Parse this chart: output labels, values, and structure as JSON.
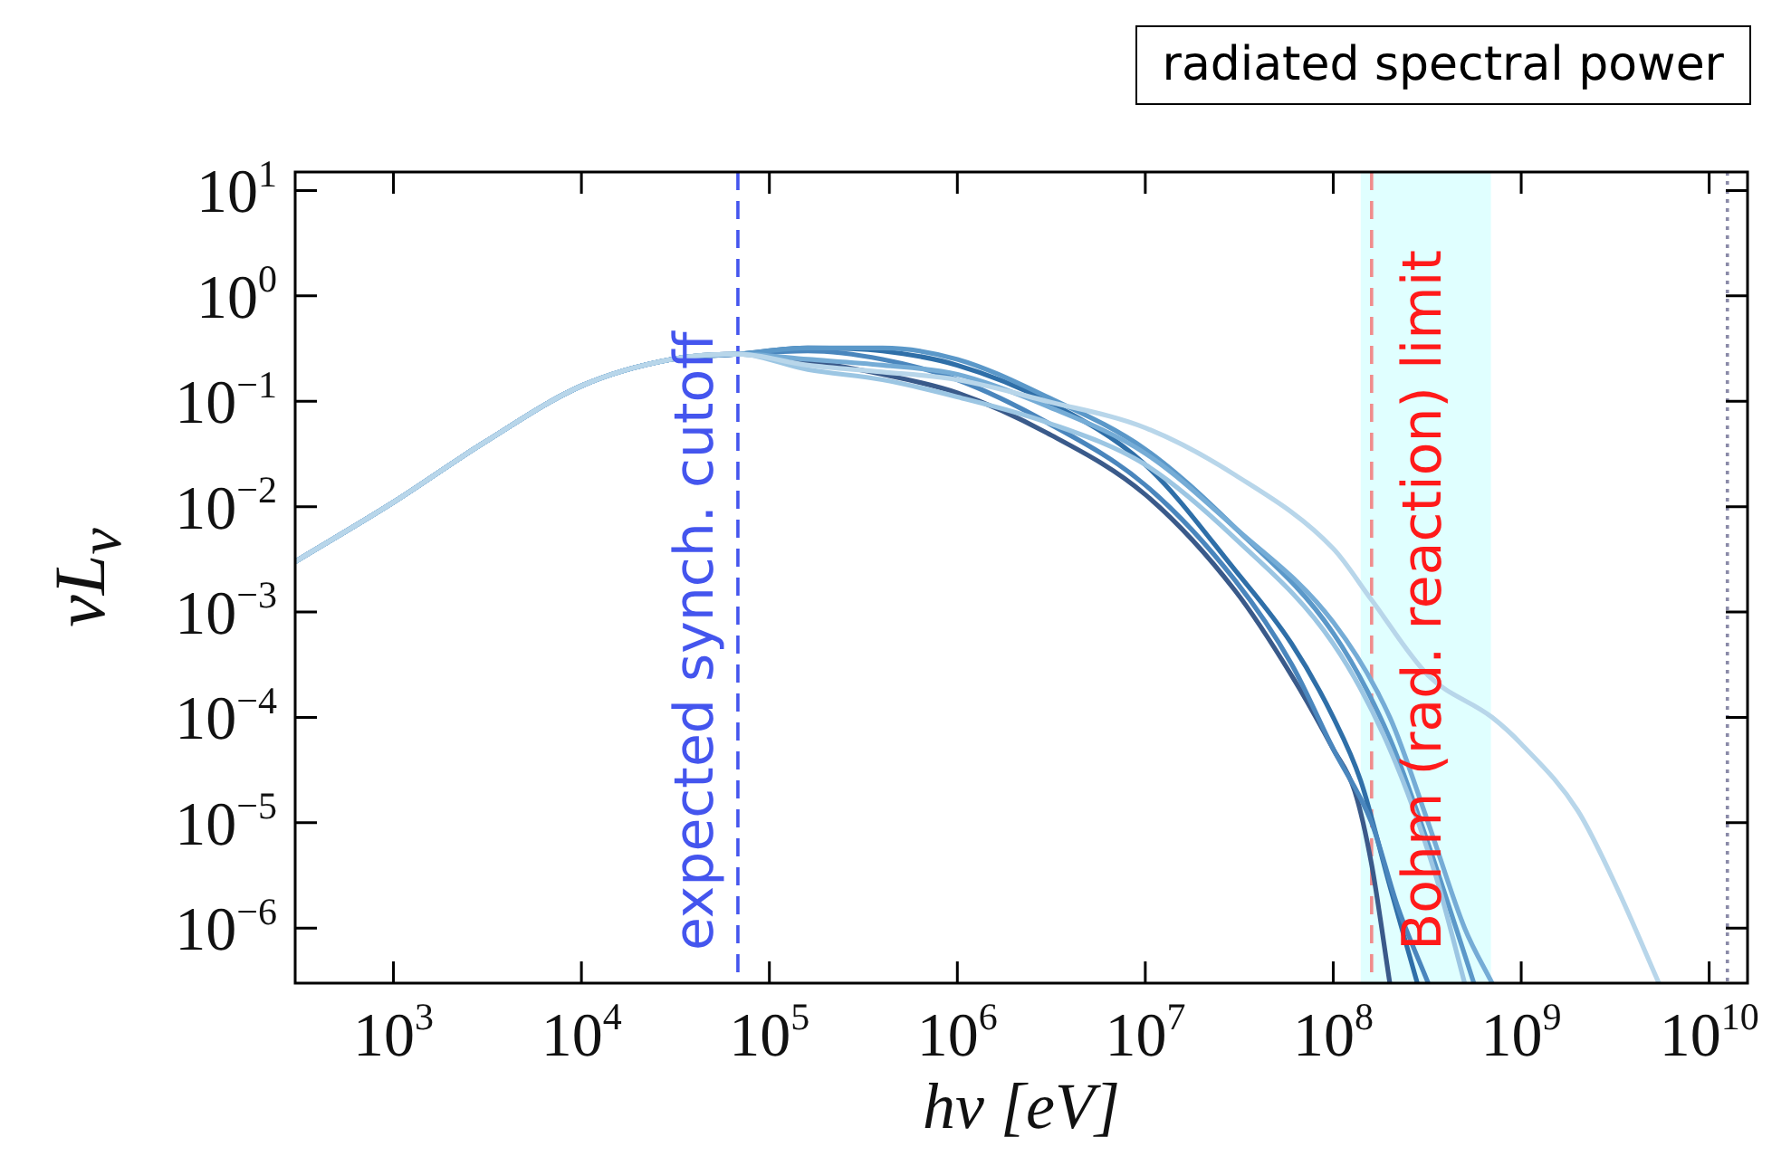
{
  "chart_data": {
    "type": "line",
    "title": "radiated spectral power",
    "xlabel": "hν [eV]",
    "ylabel": "νL$_{ν}$",
    "log": "xy",
    "grid": false,
    "legend": false,
    "marker": "none",
    "line_style": "solid",
    "xlim": [
      300,
      16000000000
    ],
    "ylim": [
      3e-07,
      15
    ],
    "xticks": [
      {
        "value": 1000,
        "label": "10$^{3}$"
      },
      {
        "value": 10000,
        "label": "10$^{4}$"
      },
      {
        "value": 100000,
        "label": "10$^{5}$"
      },
      {
        "value": 1000000,
        "label": "10$^{6}$"
      },
      {
        "value": 10000000,
        "label": "10$^{7}$"
      },
      {
        "value": 100000000,
        "label": "10$^{8}$"
      },
      {
        "value": 1000000000,
        "label": "10$^{9}$"
      },
      {
        "value": 10000000000,
        "label": "10$^{10}$"
      }
    ],
    "yticks": [
      {
        "value": 1e-06,
        "label": "10$^{−6}$"
      },
      {
        "value": 1e-05,
        "label": "10$^{−5}$"
      },
      {
        "value": 0.0001,
        "label": "10$^{−4}$"
      },
      {
        "value": 0.001,
        "label": "10$^{−3}$"
      },
      {
        "value": 0.01,
        "label": "10$^{−2}$"
      },
      {
        "value": 0.1,
        "label": "10$^{−1}$"
      },
      {
        "value": 1,
        "label": "10$^{0}$"
      },
      {
        "value": 10,
        "label": "10$^{1}$"
      }
    ],
    "series": [
      {
        "color": "#b8d6ea",
        "x": [
          300,
          1000,
          3000,
          10000,
          30000,
          68000,
          160000,
          400000,
          1000000,
          3000000,
          10000000,
          30000000,
          100000000,
          160000000,
          320000000,
          700000000,
          1000000000,
          2000000000,
          3200000000,
          5400000000
        ],
        "values": [
          0.003,
          0.011,
          0.04,
          0.14,
          0.25,
          0.28,
          0.22,
          0.19,
          0.16,
          0.1,
          0.056,
          0.02,
          0.004,
          0.0013,
          0.00025,
          0.0001,
          5.6e-05,
          1.3e-05,
          2.5e-06,
          3e-07
        ]
      },
      {
        "color": "#9cc6e3",
        "x": [
          300,
          1000,
          3000,
          10000,
          30000,
          68000,
          160000,
          400000,
          1000000,
          3000000,
          10000000,
          30000000,
          100000000,
          200000000,
          350000000,
          500000000
        ],
        "values": [
          0.003,
          0.011,
          0.04,
          0.14,
          0.25,
          0.28,
          0.2,
          0.16,
          0.11,
          0.063,
          0.025,
          0.005,
          0.0005,
          5e-05,
          3.2e-06,
          3e-07
        ]
      },
      {
        "color": "#75acd6",
        "x": [
          300,
          1000,
          3000,
          10000,
          30000,
          68000,
          160000,
          400000,
          1000000,
          3000000,
          10000000,
          30000000,
          100000000,
          200000000,
          320000000,
          500000000,
          700000000
        ],
        "values": [
          0.003,
          0.011,
          0.04,
          0.14,
          0.25,
          0.28,
          0.25,
          0.22,
          0.18,
          0.09,
          0.032,
          0.0063,
          0.0008,
          0.0001,
          1e-05,
          1e-06,
          3e-07
        ]
      },
      {
        "color": "#5b98c9",
        "x": [
          300,
          1000,
          3000,
          10000,
          30000,
          68000,
          160000,
          400000,
          1000000,
          3000000,
          10000000,
          30000000,
          100000000,
          200000000,
          320000000,
          450000000,
          560000000
        ],
        "values": [
          0.003,
          0.011,
          0.04,
          0.14,
          0.25,
          0.28,
          0.32,
          0.32,
          0.25,
          0.11,
          0.035,
          0.0063,
          0.00063,
          6.3e-05,
          6.3e-06,
          1e-06,
          3e-07
        ]
      },
      {
        "color": "#4a86bd",
        "x": [
          300,
          1000,
          3000,
          10000,
          30000,
          68000,
          160000,
          400000,
          1000000,
          3000000,
          10000000,
          30000000,
          60000000,
          100000000,
          160000000,
          220000000,
          320000000
        ],
        "values": [
          0.003,
          0.011,
          0.04,
          0.14,
          0.25,
          0.28,
          0.3,
          0.25,
          0.16,
          0.063,
          0.016,
          0.002,
          0.00032,
          5e-05,
          1e-05,
          1.6e-06,
          3e-07
        ]
      },
      {
        "color": "#2f6fa8",
        "x": [
          300,
          1000,
          3000,
          10000,
          30000,
          68000,
          160000,
          400000,
          1000000,
          3000000,
          10000000,
          30000000,
          60000000,
          100000000,
          140000000,
          200000000,
          280000000
        ],
        "values": [
          0.003,
          0.011,
          0.04,
          0.14,
          0.25,
          0.28,
          0.32,
          0.3,
          0.22,
          0.1,
          0.025,
          0.0025,
          0.0005,
          0.0001,
          2.5e-05,
          2.5e-06,
          3e-07
        ]
      },
      {
        "color": "#3a5a8a",
        "x": [
          300,
          1000,
          3000,
          10000,
          30000,
          68000,
          160000,
          400000,
          1000000,
          3000000,
          10000000,
          30000000,
          60000000,
          100000000,
          130000000,
          160000000,
          200000000
        ],
        "values": [
          0.003,
          0.011,
          0.04,
          0.14,
          0.25,
          0.28,
          0.24,
          0.18,
          0.12,
          0.05,
          0.013,
          0.0016,
          0.00025,
          5e-05,
          2e-05,
          4e-06,
          3e-07
        ]
      }
    ],
    "bands": [
      {
        "axis": "x",
        "from": 140000000,
        "to": 690000000,
        "color": "#e0ffff"
      }
    ],
    "ref_lines": [
      {
        "axis": "x",
        "value": 68000,
        "label": "expected synch. cutoff",
        "color": "#4455ee",
        "line_style": "dashed"
      },
      {
        "axis": "x",
        "value": 160000000,
        "label": "Bohm (rad. reaction) limit",
        "color": "#ff1a1a",
        "line_style": "dashed"
      },
      {
        "axis": "x",
        "value": 12500000000,
        "color": "#8a8aa8",
        "line_style": "dotted"
      }
    ]
  }
}
